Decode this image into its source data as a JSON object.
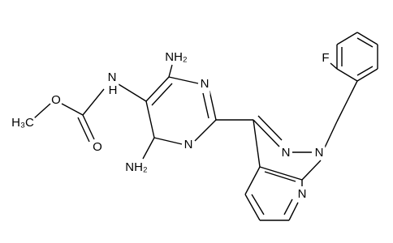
{
  "nodes": [
    {
      "label": "H₃C"
    },
    {
      "label": "O"
    },
    {
      "label": "O"
    },
    {
      "label": "N"
    },
    {
      "label": "H"
    },
    {
      "label": "NH₂"
    },
    {
      "label": "N"
    },
    {
      "label": "N"
    },
    {
      "label": "NH₂"
    },
    {
      "label": "N"
    },
    {
      "label": "N"
    },
    {
      "label": "N"
    },
    {
      "label": "F"
    }
  ]
}
